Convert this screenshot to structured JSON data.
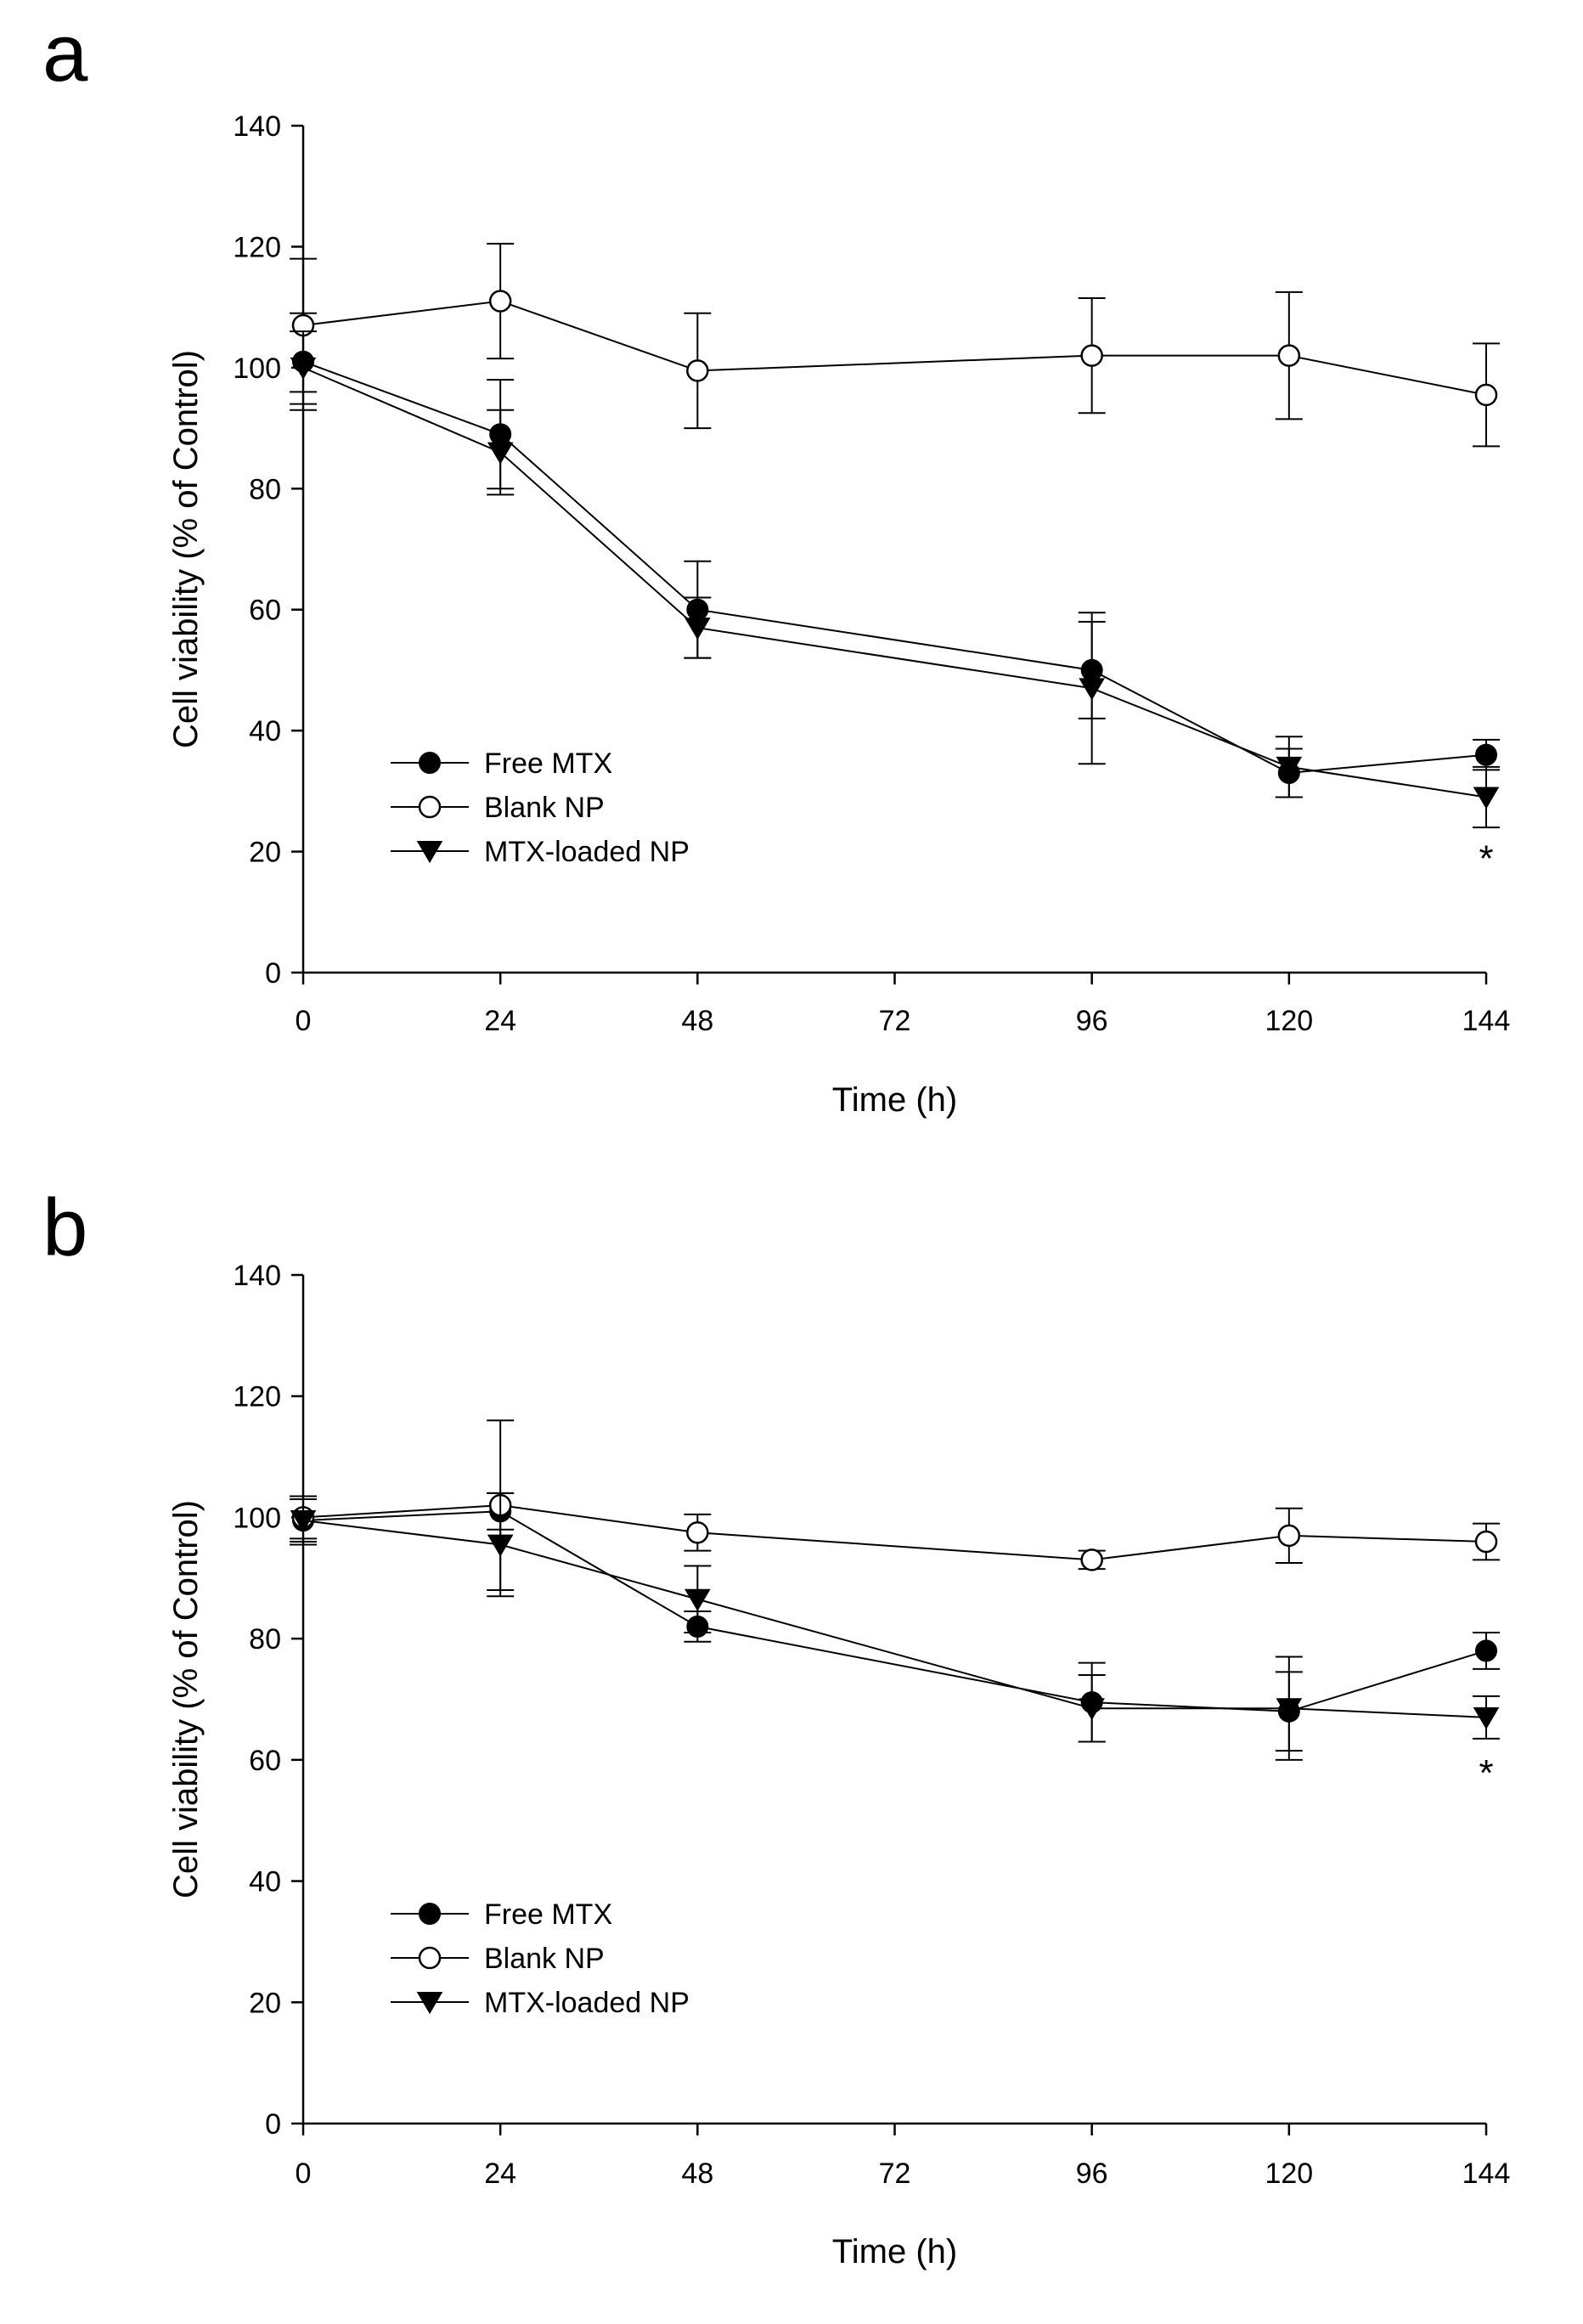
{
  "chart_data": [
    {
      "type": "line",
      "panel_label": "a",
      "xlabel": "Time (h)",
      "ylabel": "Cell viability (% of Control)",
      "xticks": [
        0,
        24,
        48,
        72,
        96,
        120,
        144
      ],
      "yticks": [
        0,
        20,
        40,
        60,
        80,
        100,
        120,
        140
      ],
      "xlim": [
        0,
        144
      ],
      "ylim": [
        0,
        140
      ],
      "legend_position": "lower-left",
      "annotation": {
        "text": "*",
        "x": 144,
        "y": 19
      },
      "series": [
        {
          "name": "Free MTX",
          "marker": "filled-circle",
          "x": [
            0,
            24,
            48,
            96,
            120,
            144
          ],
          "y": [
            101,
            89,
            60,
            50,
            33,
            36
          ],
          "err": [
            8,
            9,
            8,
            8,
            4,
            2.5
          ]
        },
        {
          "name": "Blank NP",
          "marker": "open-circle",
          "x": [
            0,
            24,
            48,
            96,
            120,
            144
          ],
          "y": [
            107,
            111,
            99.5,
            102,
            102,
            95.5
          ],
          "err": [
            11,
            9.5,
            9.5,
            9.5,
            10.5,
            8.5
          ]
        },
        {
          "name": "MTX-loaded NP",
          "marker": "filled-triangle-down",
          "x": [
            0,
            24,
            48,
            96,
            120,
            144
          ],
          "y": [
            100,
            86,
            57,
            47,
            34,
            29
          ],
          "err": [
            6,
            7,
            5,
            12.5,
            5,
            5
          ]
        }
      ]
    },
    {
      "type": "line",
      "panel_label": "b",
      "xlabel": "Time (h)",
      "ylabel": "Cell viability (% of Control)",
      "xticks": [
        0,
        24,
        48,
        72,
        96,
        120,
        144
      ],
      "yticks": [
        0,
        20,
        40,
        60,
        80,
        100,
        120,
        140
      ],
      "xlim": [
        0,
        144
      ],
      "ylim": [
        0,
        140
      ],
      "legend_position": "lower-left",
      "annotation": {
        "text": "*",
        "x": 144,
        "y": 58
      },
      "series": [
        {
          "name": "Free MTX",
          "marker": "filled-circle",
          "x": [
            0,
            24,
            48,
            96,
            120,
            144
          ],
          "y": [
            99.5,
            101,
            82,
            69.5,
            68,
            78
          ],
          "err": [
            3.5,
            3,
            2.5,
            6.5,
            6.5,
            3
          ]
        },
        {
          "name": "Blank NP",
          "marker": "open-circle",
          "x": [
            0,
            24,
            48,
            96,
            120,
            144
          ],
          "y": [
            100,
            102,
            97.5,
            93,
            97,
            96
          ],
          "err": [
            3.5,
            14,
            3,
            1.5,
            4.5,
            3
          ]
        },
        {
          "name": "MTX-loaded NP",
          "marker": "filled-triangle-down",
          "x": [
            0,
            24,
            48,
            96,
            120,
            144
          ],
          "y": [
            99.5,
            95.5,
            86.5,
            68.5,
            68.5,
            67
          ],
          "err": [
            4,
            8.5,
            5.5,
            5.5,
            8.5,
            3.5
          ]
        }
      ]
    }
  ]
}
